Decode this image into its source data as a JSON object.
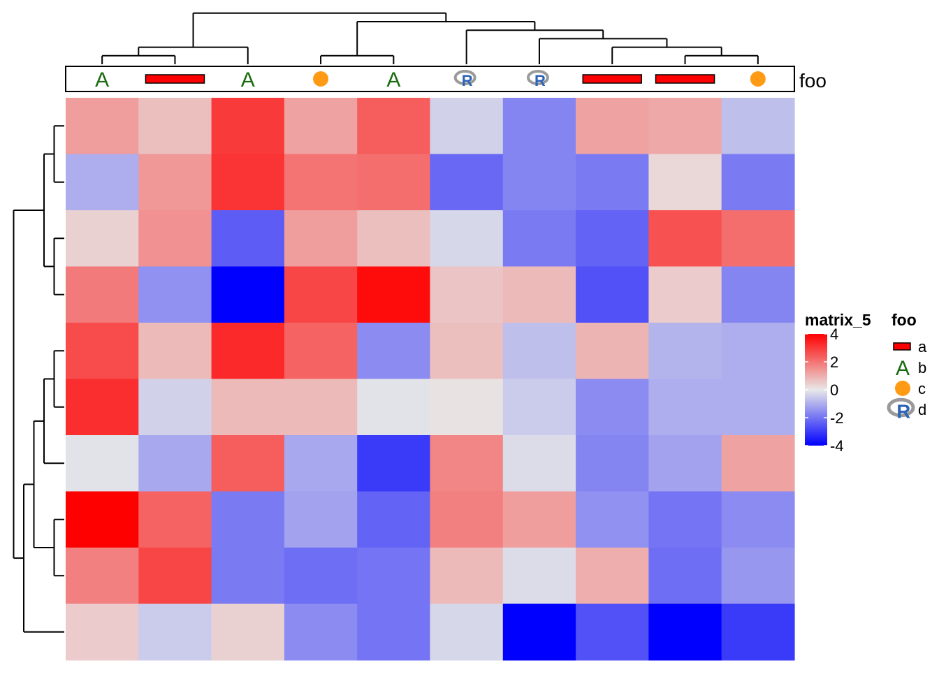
{
  "chart_data": {
    "type": "heatmap",
    "matrix_name": "matrix_5",
    "rows": 10,
    "cols": 10,
    "values": [
      [
        1.3,
        0.7,
        3.0,
        1.2,
        2.4,
        -0.4,
        -1.7,
        1.2,
        1.1,
        -0.7
      ],
      [
        -1.0,
        1.4,
        3.1,
        2.0,
        2.1,
        -2.2,
        -1.7,
        -1.9,
        0.3,
        -1.9
      ],
      [
        0.4,
        1.5,
        -2.4,
        1.3,
        0.7,
        -0.3,
        -1.9,
        -2.3,
        2.6,
        2.1
      ],
      [
        1.9,
        -1.5,
        -4.0,
        2.8,
        3.8,
        0.6,
        0.8,
        -2.6,
        0.5,
        -1.7
      ],
      [
        2.7,
        0.8,
        3.3,
        2.3,
        -1.6,
        0.7,
        -0.7,
        0.9,
        -0.9,
        -1.0
      ],
      [
        3.2,
        -0.4,
        0.8,
        0.8,
        -0.1,
        0.1,
        -0.5,
        -1.6,
        -1.0,
        -1.0
      ],
      [
        -0.1,
        -1.1,
        2.4,
        -1.1,
        -3.0,
        1.7,
        -0.2,
        -1.7,
        -1.2,
        1.2
      ],
      [
        4.3,
        2.3,
        -1.9,
        -1.2,
        -2.3,
        1.8,
        1.3,
        -1.5,
        -2.0,
        -1.6
      ],
      [
        1.8,
        2.8,
        -1.9,
        -2.1,
        -2.0,
        0.8,
        -0.2,
        1.0,
        -2.1,
        -1.4
      ],
      [
        0.5,
        -0.5,
        0.4,
        -1.6,
        -2.0,
        -0.3,
        -4.4,
        -2.6,
        -4.4,
        -3.0
      ]
    ],
    "color_scale": {
      "domain": [
        -4,
        0,
        4
      ],
      "colors": [
        "#0000ff",
        "#e8e8e8",
        "#ff0000"
      ],
      "ticks": [
        "4",
        "2",
        "0",
        "-2",
        "-4"
      ],
      "tick_values": [
        4,
        2,
        0,
        -2,
        -4
      ]
    },
    "column_annotation": {
      "name": "foo",
      "values": [
        "b",
        "a",
        "b",
        "c",
        "b",
        "d",
        "d",
        "a",
        "a",
        "c"
      ]
    },
    "legend_levels": [
      {
        "label": "a",
        "symbol": "rect",
        "color": "#ff0000"
      },
      {
        "label": "b",
        "symbol": "A",
        "color": "#1a6b10"
      },
      {
        "label": "c",
        "symbol": "circle",
        "color": "#ff9a14"
      },
      {
        "label": "d",
        "symbol": "R-logo",
        "color": "#2d63b5"
      }
    ],
    "column_dendrogram": [
      [
        0,
        1
      ],
      [
        [
          0,
          1
        ],
        2
      ],
      [
        3,
        4
      ],
      [
        8,
        9
      ],
      [
        7,
        [
          8,
          9
        ]
      ],
      [
        6,
        [
          7,
          [
            8,
            9
          ]
        ]
      ],
      [
        5,
        [
          6,
          [
            7,
            [
              8,
              9
            ]
          ]
        ]
      ],
      [
        [
          3,
          4
        ],
        [
          5,
          [
            6,
            [
              7,
              [
                8,
                9
              ]
            ]
          ]
        ]
      ],
      [
        [
          [
            0,
            1
          ],
          2
        ],
        [
          [
            3,
            4
          ],
          [
            5,
            [
              6,
              [
                7,
                [
                  8,
                  9
                ]
              ]
            ]
          ]
        ]
      ]
    ],
    "row_dendrogram": [
      [
        0,
        1
      ],
      [
        2,
        3
      ],
      [
        [
          0,
          1
        ],
        [
          2,
          3
        ]
      ],
      [
        4,
        5
      ],
      [
        [
          4,
          5
        ],
        6
      ],
      [
        7,
        8
      ],
      [
        [
          [
            4,
            5
          ],
          6
        ],
        [
          7,
          8
        ]
      ],
      [
        [
          [
            [
              4,
              5
            ],
            6
          ],
          [
            7,
            8
          ]
        ],
        9
      ],
      [
        [
          [
            0,
            1
          ],
          [
            2,
            3
          ]
        ],
        [
          [
            [
              [
                4,
                5
              ],
              6
            ],
            [
              7,
              8
            ]
          ],
          9
        ]
      ]
    ],
    "title": "",
    "xlabel": "",
    "ylabel": ""
  },
  "annotation_label": "foo",
  "legends": {
    "matrix_title": "matrix_5",
    "annotation_title": "foo",
    "r_logo_letter": "R",
    "a_letter": "A"
  }
}
